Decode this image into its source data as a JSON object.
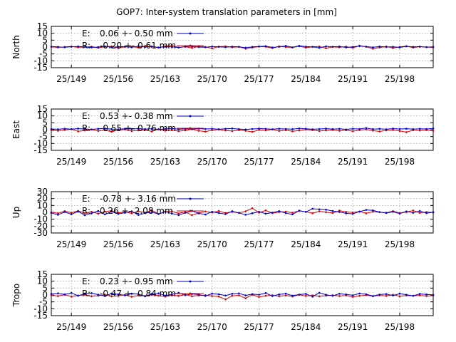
{
  "title": "GOP7: Inter-system translation parameters in [mm]",
  "colors": {
    "E": "#0000cc",
    "R": "#dd0000",
    "axis": "#000000",
    "grid": "#a0a0a0",
    "background": "#ffffff"
  },
  "chart_data": {
    "type": "line",
    "x_ticks": [
      "25/149",
      "25/156",
      "25/163",
      "25/170",
      "25/177",
      "25/184",
      "25/191",
      "25/198"
    ],
    "x_tick_days": [
      149,
      156,
      163,
      170,
      177,
      184,
      191,
      198
    ],
    "x_range_days": [
      146,
      203
    ],
    "x_days": [
      146,
      147,
      148,
      149,
      150,
      151,
      152,
      153,
      154,
      155,
      156,
      157,
      158,
      159,
      160,
      161,
      162,
      163,
      164,
      165,
      166,
      167,
      168,
      169,
      170,
      171,
      172,
      173,
      174,
      175,
      176,
      177,
      178,
      179,
      180,
      181,
      182,
      183,
      184,
      185,
      186,
      187,
      188,
      189,
      190,
      191,
      192,
      193,
      194,
      195,
      196,
      197,
      198,
      199,
      200,
      201,
      202,
      203
    ],
    "grid": true,
    "legend_position": "top-left",
    "panels": [
      {
        "ylabel": "North",
        "ylim": [
          -15,
          15
        ],
        "yticks": [
          "15",
          "10",
          "5",
          "0",
          "-5",
          "-10",
          "-15"
        ],
        "ytick_values": [
          15,
          10,
          5,
          0,
          -5,
          -10,
          -15
        ],
        "series": [
          {
            "name": "E:",
            "stats": "0.06 +- 0.50 mm",
            "values": [
              0.3,
              0.1,
              -0.2,
              0.2,
              0.4,
              0.1,
              -0.3,
              0.0,
              0.5,
              -0.1,
              0.2,
              0.3,
              -0.2,
              0.6,
              0.1,
              0.4,
              -0.3,
              0.2,
              0.1,
              -0.4,
              0.3,
              0.5,
              0.0,
              -0.2,
              0.4,
              0.1,
              -0.1,
              0.3,
              0.2,
              -0.5,
              0.1,
              0.4,
              0.6,
              -0.3,
              0.2,
              0.8,
              -0.2,
              0.9,
              0.3,
              0.1,
              -0.6,
              0.5,
              0.2,
              0.4,
              -0.3,
              0.1,
              0.7,
              0.3,
              -0.2,
              0.4,
              0.0,
              0.2,
              -0.3,
              0.5,
              0.1,
              0.3,
              -0.1,
              0.2
            ]
          },
          {
            "name": "R:",
            "stats": "-0.20 +- 0.61 mm",
            "values": [
              0.2,
              -0.3,
              0.1,
              0.4,
              -0.2,
              0.0,
              0.3,
              -0.6,
              0.2,
              0.5,
              -0.8,
              0.1,
              0.3,
              -0.4,
              0.8,
              0.2,
              -0.5,
              0.6,
              1.1,
              -0.3,
              0.2,
              -0.7,
              0.4,
              0.1,
              -1.0,
              0.3,
              0.5,
              -0.2,
              0.1,
              -1.2,
              -0.4,
              0.3,
              0.2,
              -0.8,
              0.5,
              0.0,
              -0.3,
              0.6,
              -0.5,
              0.2,
              0.4,
              -0.9,
              0.1,
              -0.2,
              0.3,
              -0.6,
              1.0,
              0.2,
              -1.2,
              -0.3,
              0.4,
              -0.8,
              0.1,
              0.6,
              -0.4,
              0.2,
              0.0,
              -0.3
            ]
          }
        ]
      },
      {
        "ylabel": "East",
        "ylim": [
          -15,
          15
        ],
        "yticks": [
          "15",
          "10",
          "5",
          "0",
          "-5",
          "-10",
          "-15"
        ],
        "ytick_values": [
          15,
          10,
          5,
          0,
          -5,
          -10,
          -15
        ],
        "series": [
          {
            "name": "E:",
            "stats": "0.53 +- 0.38 mm",
            "values": [
              0.5,
              0.3,
              0.7,
              0.4,
              0.8,
              0.5,
              0.2,
              0.6,
              0.9,
              0.4,
              0.3,
              0.7,
              0.5,
              0.8,
              0.4,
              0.6,
              0.2,
              0.5,
              0.9,
              0.3,
              0.6,
              0.4,
              0.8,
              0.5,
              0.7,
              0.3,
              0.6,
              0.9,
              0.4,
              0.2,
              0.5,
              0.8,
              0.6,
              0.3,
              0.7,
              0.5,
              0.4,
              0.9,
              0.6,
              0.3,
              0.5,
              0.8,
              0.4,
              0.6,
              0.2,
              0.7,
              0.5,
              1.2,
              0.4,
              0.6,
              0.3,
              0.8,
              0.5,
              0.7,
              0.4,
              0.6,
              0.5,
              0.9
            ]
          },
          {
            "name": "R:",
            "stats": "-0.55 +- 0.76 mm",
            "values": [
              -0.4,
              -0.8,
              -0.2,
              0.3,
              -1.2,
              -0.6,
              0.1,
              -0.9,
              -0.3,
              -1.5,
              -0.4,
              0.2,
              -1.0,
              -0.5,
              -0.2,
              -1.3,
              0.4,
              -0.7,
              -0.2,
              -1.1,
              -0.5,
              0.3,
              -0.8,
              -1.4,
              -0.4,
              0.1,
              -0.6,
              -1.0,
              -0.3,
              -0.8,
              -1.6,
              -0.2,
              -0.5,
              0.2,
              -0.9,
              -0.4,
              -1.2,
              -0.6,
              0.1,
              -0.3,
              -1.0,
              -0.5,
              -0.2,
              -0.8,
              -0.4,
              -1.1,
              -0.3,
              0.2,
              -0.7,
              -1.3,
              -0.5,
              -0.2,
              -0.9,
              -1.8,
              -0.4,
              -0.6,
              -0.3,
              -0.8
            ]
          }
        ]
      },
      {
        "ylabel": "Up",
        "ylim": [
          -30,
          30
        ],
        "yticks": [
          "30",
          "20",
          "10",
          "0",
          "-10",
          "-20",
          "-30"
        ],
        "ytick_values": [
          30,
          20,
          10,
          0,
          -10,
          -20,
          -30
        ],
        "series": [
          {
            "name": "E:",
            "stats": "-0.78 +- 3.16 mm",
            "values": [
              -1.0,
              -3.5,
              0.5,
              -2.8,
              1.2,
              -4.2,
              -1.5,
              2.0,
              -3.0,
              0.8,
              -2.2,
              -0.5,
              1.5,
              -3.8,
              -1.2,
              0.4,
              -2.5,
              1.0,
              -1.8,
              -4.0,
              -0.6,
              2.2,
              -1.5,
              -3.2,
              0.8,
              -1.0,
              -2.6,
              1.6,
              -0.8,
              -3.5,
              -1.4,
              0.9,
              -2.0,
              -0.4,
              1.8,
              -1.2,
              -3.0,
              2.5,
              0.6,
              5.2,
              4.5,
              3.8,
              2.0,
              0.5,
              -1.5,
              -2.2,
              1.0,
              3.5,
              2.8,
              0.4,
              -1.0,
              0.8,
              -1.8,
              1.4,
              -0.6,
              2.0,
              -1.2,
              0.3
            ]
          },
          {
            "name": "R:",
            "stats": "0.26 +- 2.08 mm",
            "values": [
              0.3,
              -1.5,
              1.8,
              -0.6,
              2.2,
              -1.2,
              0.8,
              -2.0,
              1.0,
              2.5,
              -0.8,
              0.6,
              -1.4,
              1.6,
              -0.4,
              3.0,
              -2.5,
              0.9,
              1.4,
              -1.6,
              0.5,
              -4.0,
              -1.0,
              1.2,
              -0.3,
              2.0,
              -1.0,
              0.6,
              -0.8,
              1.5,
              6.0,
              -0.5,
              2.8,
              -1.2,
              0.4,
              1.0,
              -0.6,
              2.2,
              0.8,
              -1.4,
              1.6,
              0.2,
              -0.9,
              2.5,
              0.6,
              -0.2,
              1.2,
              -1.5,
              0.9,
              0.3,
              -0.6,
              1.8,
              -1.0,
              0.4,
              2.6,
              -0.8,
              0.5,
              -0.3
            ]
          }
        ]
      },
      {
        "ylabel": "Tropo",
        "ylim": [
          -15,
          15
        ],
        "yticks": [
          "15",
          "10",
          "5",
          "0",
          "-5",
          "-10",
          "-15"
        ],
        "ytick_values": [
          15,
          10,
          5,
          0,
          -5,
          -10,
          -15
        ],
        "series": [
          {
            "name": "E:",
            "stats": "0.23 +- 0.95 mm",
            "values": [
              0.8,
              1.2,
              0.4,
              1.5,
              -0.6,
              0.9,
              1.4,
              0.2,
              -0.8,
              1.1,
              0.5,
              -0.3,
              1.0,
              0.6,
              -1.0,
              0.8,
              1.2,
              -0.5,
              0.4,
              1.6,
              -0.2,
              0.8,
              0.3,
              -0.7,
              1.0,
              0.5,
              -0.4,
              0.9,
              1.2,
              -0.3,
              0.6,
              0.2,
              1.4,
              -0.8,
              0.4,
              1.0,
              -0.5,
              0.3,
              0.8,
              -1.2,
              1.6,
              0.2,
              -0.6,
              0.9,
              0.4,
              -0.2,
              1.1,
              0.5,
              -0.8,
              0.3,
              0.7,
              -0.4,
              1.0,
              0.2,
              -0.6,
              0.8,
              0.4,
              0.1
            ]
          },
          {
            "name": "R:",
            "stats": "-0.47 +- 0.84 mm",
            "values": [
              -0.3,
              -0.8,
              0.2,
              -1.2,
              -0.4,
              0.1,
              -0.9,
              -0.5,
              0.3,
              -1.0,
              -0.6,
              0.2,
              -1.3,
              -0.4,
              -0.8,
              0.1,
              -0.5,
              -1.1,
              -0.2,
              -0.7,
              0.3,
              -0.9,
              -0.4,
              -0.1,
              -0.8,
              -1.2,
              -3.2,
              -0.6,
              -0.3,
              -2.4,
              0.2,
              -1.5,
              -0.6,
              -0.2,
              -0.9,
              -0.4,
              -1.1,
              0.1,
              -0.7,
              -0.3,
              -1.0,
              -0.5,
              -0.2,
              -0.8,
              -0.4,
              -1.4,
              -0.6,
              -0.1,
              -0.9,
              -0.3,
              -0.7,
              0.2,
              -1.0,
              -0.4,
              -0.6,
              -0.3,
              -0.8,
              -0.5
            ]
          }
        ]
      }
    ]
  }
}
